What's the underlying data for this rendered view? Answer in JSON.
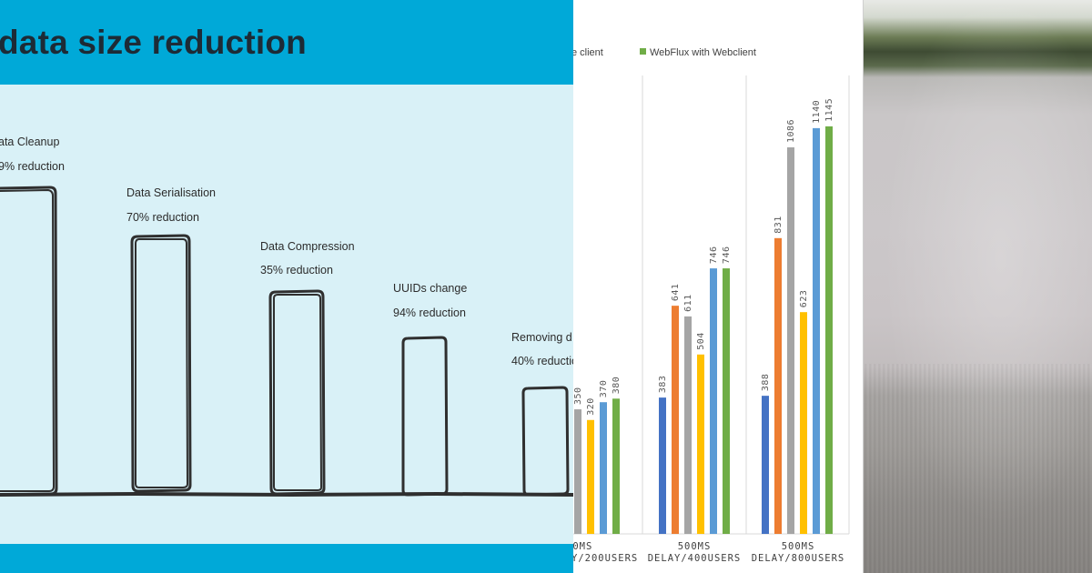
{
  "slide": {
    "title": "data size reduction",
    "steps": [
      {
        "name": "ata Cleanup",
        "reduction": "9% reduction"
      },
      {
        "name": "Data Serialisation",
        "reduction": "70% reduction"
      },
      {
        "name": "Data Compression",
        "reduction": "35% reduction"
      },
      {
        "name": "UUIDs change",
        "reduction": "94% reduction"
      },
      {
        "name": "Removing d",
        "reduction": "40% reductio"
      }
    ]
  },
  "chart_data": {
    "type": "bar",
    "title": "",
    "legend": [
      {
        "name": "e client",
        "color": ""
      },
      {
        "name": "WebFlux with Webclient",
        "color": "#70ad47"
      }
    ],
    "categories": [
      [
        "00MS",
        "Y/200USERS"
      ],
      [
        "500MS",
        "DELAY/400USERS"
      ],
      [
        "500MS",
        "DELAY/800USERS"
      ]
    ],
    "series_colors": [
      "#4472c4",
      "#ed7d31",
      "#a5a5a5",
      "#ffc000",
      "#5b9bd5",
      "#70ad47"
    ],
    "series": [
      {
        "name": "",
        "values": [
          null,
          383,
          388
        ]
      },
      {
        "name": "",
        "values": [
          null,
          641,
          831
        ]
      },
      {
        "name": "",
        "values": [
          350,
          611,
          1086
        ]
      },
      {
        "name": "",
        "values": [
          320,
          504,
          623
        ]
      },
      {
        "name": "",
        "values": [
          370,
          746,
          1140
        ]
      },
      {
        "name": "WebFlux with Webclient",
        "values": [
          380,
          746,
          1145
        ]
      }
    ],
    "ylim": [
      0,
      1500
    ],
    "xlabel": "",
    "ylabel": ""
  }
}
